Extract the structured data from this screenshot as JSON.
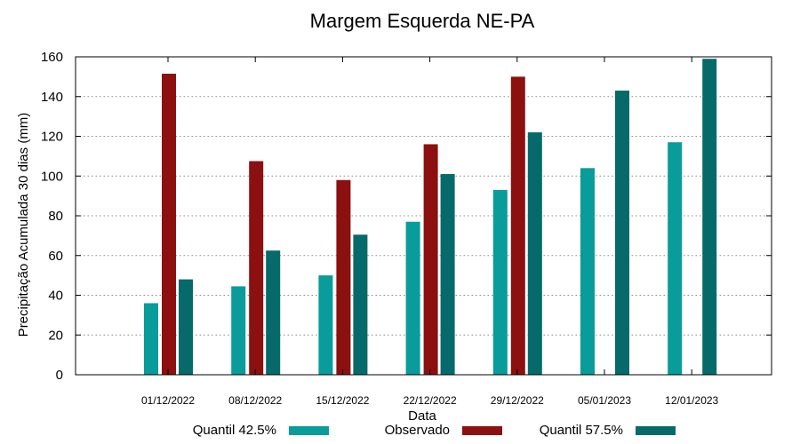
{
  "chart_data": {
    "type": "bar",
    "title": "Margem Esquerda NE-PA",
    "xlabel": "Data",
    "ylabel": "Precipitação Acumulada 30 dias (mm)",
    "ylim": [
      0,
      160
    ],
    "yticks": [
      0,
      20,
      40,
      60,
      80,
      100,
      120,
      140,
      160
    ],
    "grid": true,
    "legend_position": "bottom",
    "categories": [
      "01/12/2022",
      "08/12/2022",
      "15/12/2022",
      "22/12/2022",
      "29/12/2022",
      "05/01/2023",
      "12/01/2023"
    ],
    "series": [
      {
        "name": "Quantil 42.5%",
        "color": "#0a9b9b",
        "values": [
          36,
          44.5,
          50,
          77,
          93,
          104,
          117
        ]
      },
      {
        "name": "Observado",
        "color": "#8c1010",
        "values": [
          151.5,
          107.5,
          98,
          116,
          150,
          null,
          null
        ]
      },
      {
        "name": "Quantil 57.5%",
        "color": "#066a6a",
        "values": [
          48,
          62.5,
          70.5,
          101,
          122,
          143,
          159
        ]
      }
    ]
  }
}
